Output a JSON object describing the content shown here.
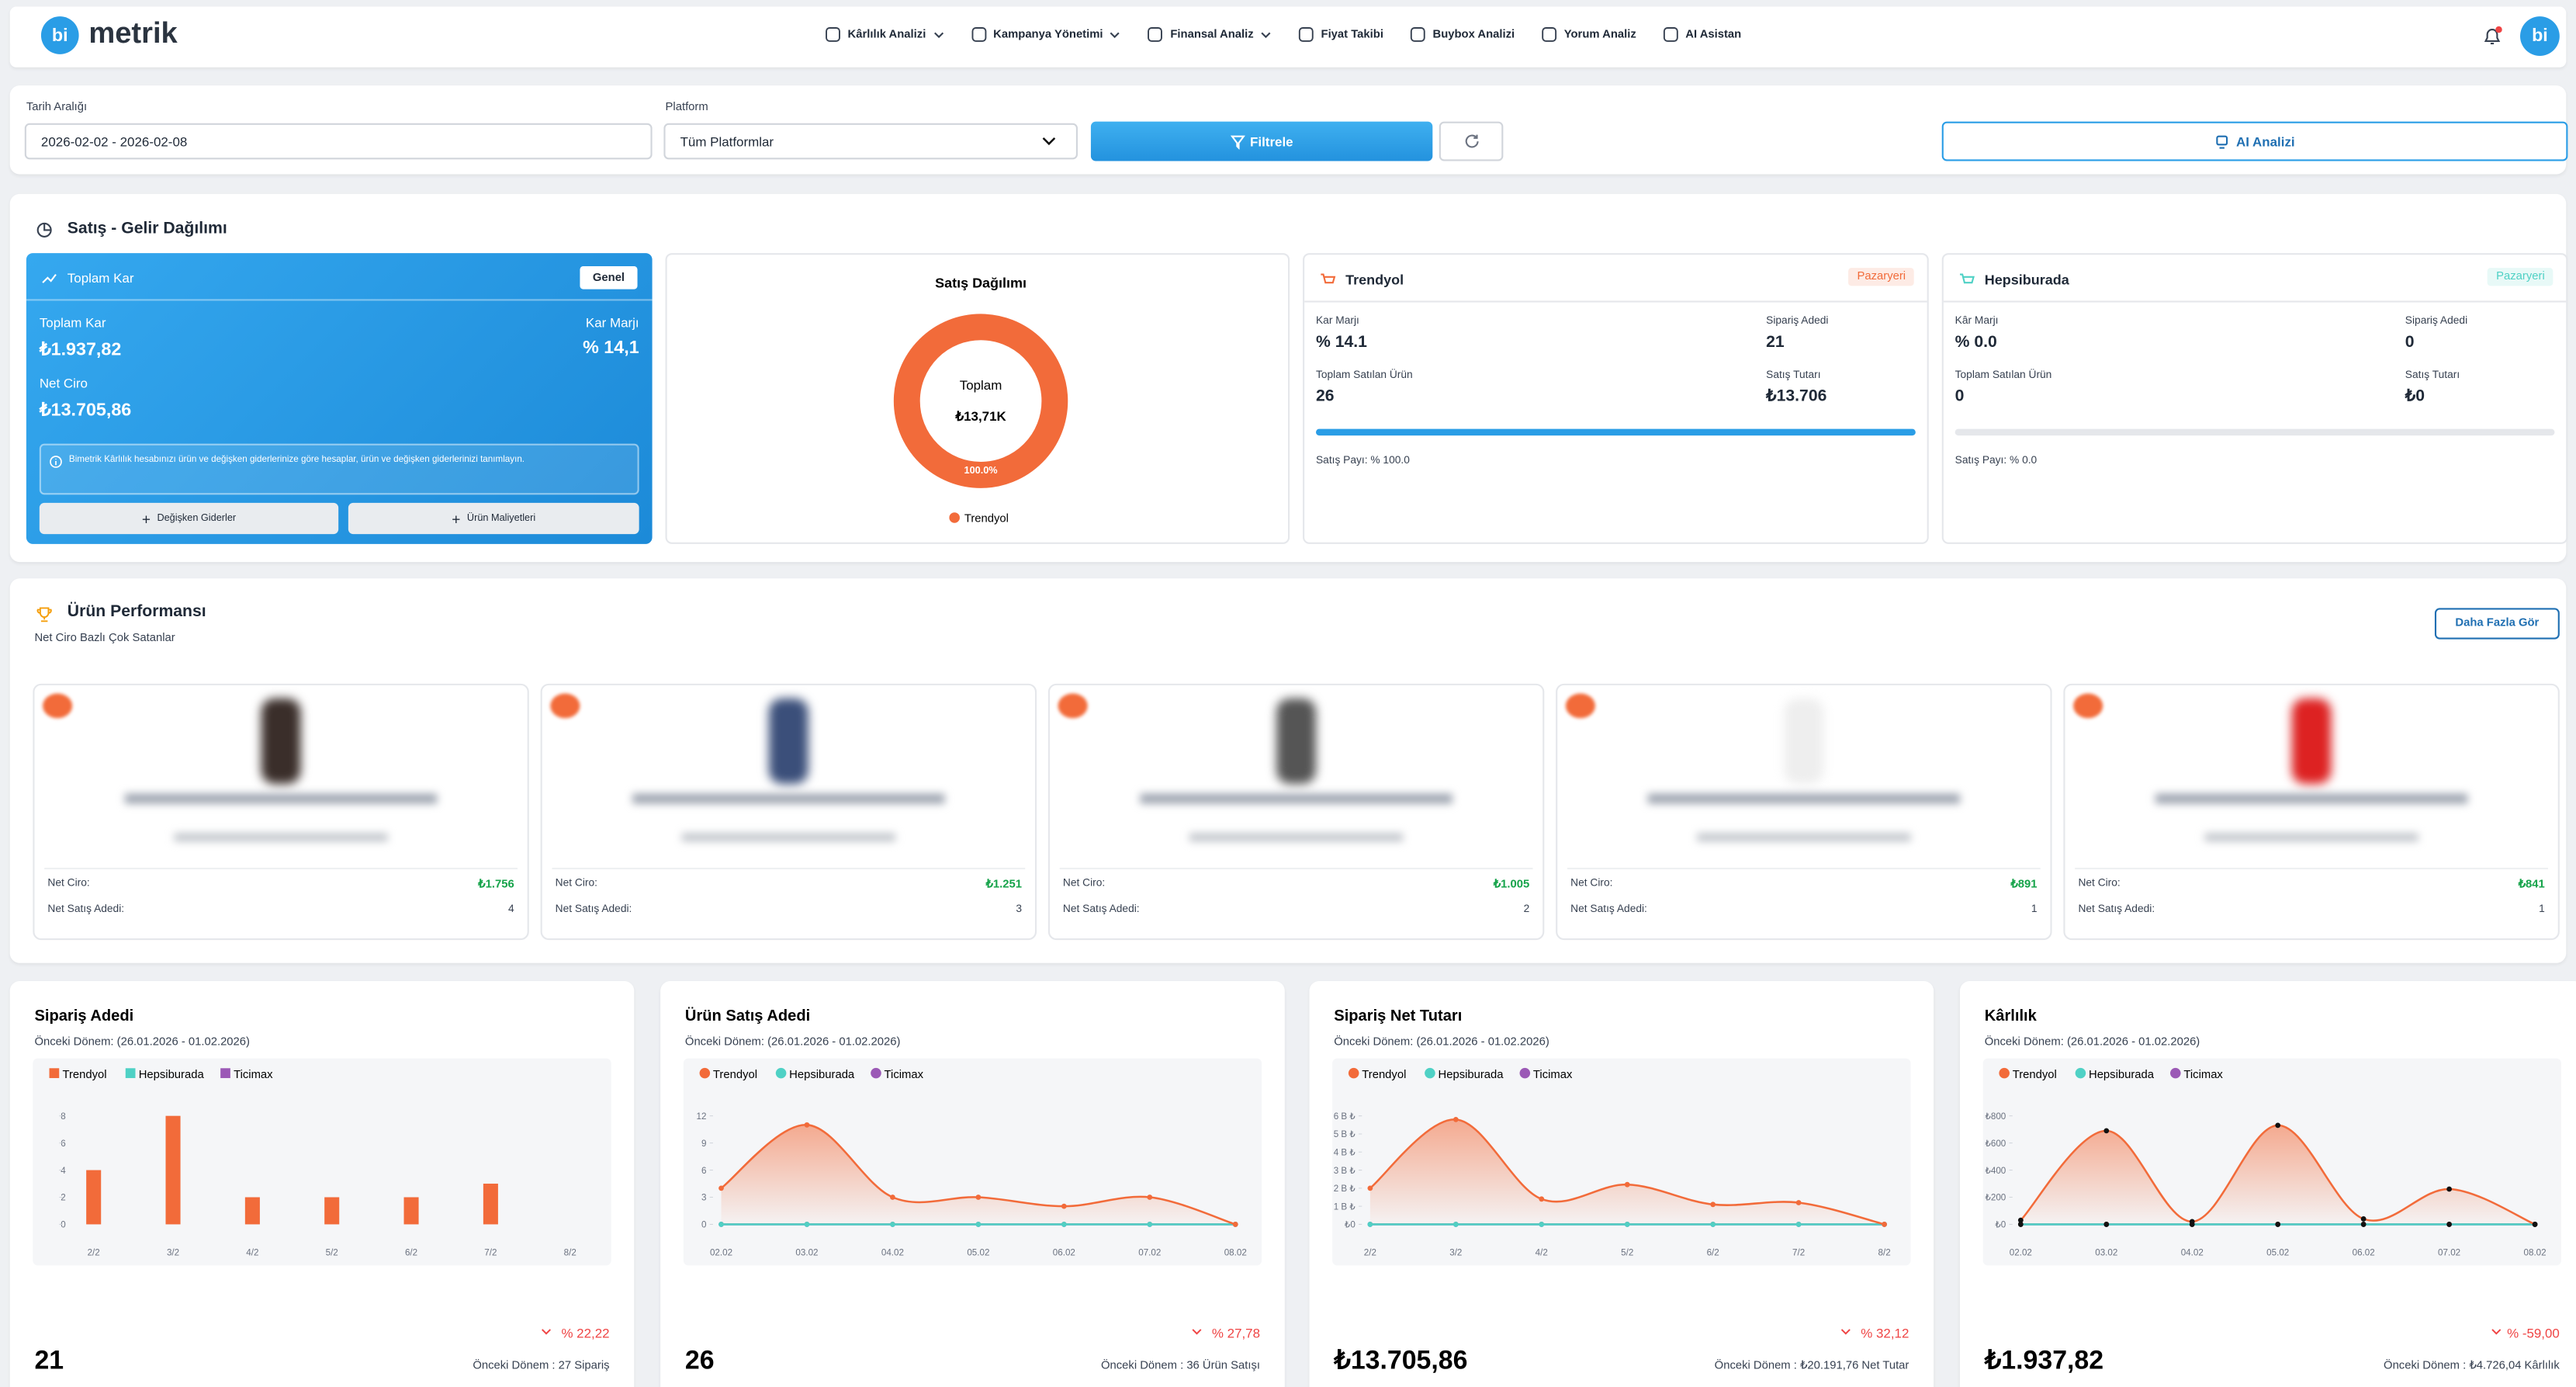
{
  "nav": {
    "logo": "bi",
    "brand": "metrik",
    "items": [
      "Kârlılık Analizi",
      "Kampanya Yönetimi",
      "Finansal Analiz",
      "Fiyat Takibi",
      "Buybox Analizi",
      "Yorum Analiz",
      "AI Asistan"
    ],
    "avatar": "bi"
  },
  "filters": {
    "date_label": "Tarih Aralığı",
    "date_value": "2026-02-02 - 2026-02-08",
    "platform_label": "Platform",
    "platform_value": "Tüm Platformlar",
    "filter_button": "Filtrele",
    "ai_button": "AI Analizi"
  },
  "sales": {
    "title": "Satış - Gelir Dağılımı",
    "profit": {
      "title": "Toplam Kar",
      "badge": "Genel",
      "total_label": "Toplam Kar",
      "total": "₺1.937,82",
      "margin_label": "Kar Marjı",
      "margin": "% 14,1",
      "revenue_label": "Net Ciro",
      "revenue": "₺13.705,86",
      "info": "Bimetrik Kârlılık hesabınızı ürün ve değişken giderlerinize göre hesaplar, ürün ve değişken giderlerinizi tanımlayın.",
      "buttons": [
        "Değişken Giderler",
        "Ürün Maliyetleri"
      ]
    },
    "distribution": {
      "type": "pie",
      "title": "Satış Dağılımı",
      "center_label": "Toplam",
      "center_value": "₺13,71K",
      "slices": [
        {
          "name": "Trendyol",
          "color": "#f26b3a",
          "value": 100,
          "value_label": "100.0%"
        }
      ]
    },
    "marketplaces": [
      {
        "name": "Trendyol",
        "badge": "Pazaryeri",
        "color": "#f26b3a",
        "bar_color": "#2a9de6",
        "fields": [
          {
            "label": "Kar Marjı",
            "value": "% 14.1"
          },
          {
            "label": "Sipariş Adedi",
            "value": 21
          },
          {
            "label": "Toplam Satılan Ürün",
            "value": 26
          },
          {
            "label": "Satış Tutarı",
            "value": "₺13.706"
          }
        ],
        "share": 100,
        "xlim": [
          0,
          100
        ],
        "share_label": "Satış Payı: % 100.0"
      },
      {
        "name": "Hepsiburada",
        "badge": "Pazaryeri",
        "color": "#4fd1c5",
        "bar_color": "#2a9de6",
        "fields": [
          {
            "label": "Kâr Marjı",
            "value": "% 0.0"
          },
          {
            "label": "Sipariş Adedi",
            "value": 0
          },
          {
            "label": "Toplam Satılan Ürün",
            "value": 0
          },
          {
            "label": "Satış Tutarı",
            "value": "₺0"
          }
        ],
        "share": 0,
        "xlim": [
          0,
          100
        ],
        "share_label": "Satış Payı: % 0.0"
      }
    ]
  },
  "products": {
    "title": "Ürün Performansı",
    "subtitle": "Net Ciro Bazlı Çok Satanlar",
    "more_button": "Daha Fazla Gör",
    "items": [
      {
        "net_ciro_label": "Net Ciro:",
        "net_ciro": "₺1.756",
        "count_label": "Net Satış Adedi:",
        "count": 4
      },
      {
        "net_ciro_label": "Net Ciro:",
        "net_ciro": "₺1.251",
        "count_label": "Net Satış Adedi:",
        "count": 3
      },
      {
        "net_ciro_label": "Net Ciro:",
        "net_ciro": "₺1.005",
        "count_label": "Net Satış Adedi:",
        "count": 2
      },
      {
        "net_ciro_label": "Net Ciro:",
        "net_ciro": "₺891",
        "count_label": "Net Satış Adedi:",
        "count": 1
      },
      {
        "net_ciro_label": "Net Ciro:",
        "net_ciro": "₺841",
        "count_label": "Net Satış Adedi:",
        "count": 1
      }
    ]
  },
  "charts": [
    {
      "type": "bar",
      "title": "Sipariş Adedi",
      "subtitle": "Önceki Dönem: (26.01.2026 - 01.02.2026)",
      "categories": [
        "2/2",
        "3/2",
        "4/2",
        "5/2",
        "6/2",
        "7/2",
        "8/2"
      ],
      "series": [
        {
          "name": "Trendyol",
          "color": "#f26b3a",
          "values": [
            4,
            8,
            2,
            2,
            2,
            3,
            0
          ]
        },
        {
          "name": "Hepsiburada",
          "color": "#4fd1c5",
          "values": [
            0,
            0,
            0,
            0,
            0,
            0,
            0
          ]
        },
        {
          "name": "Ticimax",
          "color": "#9b59b6",
          "values": [
            0,
            0,
            0,
            0,
            0,
            0,
            0
          ]
        }
      ],
      "ylim": [
        0,
        8
      ],
      "yticks": [
        0,
        2,
        4,
        6,
        8
      ],
      "total": "21",
      "change": "% 22,22",
      "previous": "Önceki Dönem : 27 Sipariş"
    },
    {
      "type": "line",
      "title": "Ürün Satış Adedi",
      "subtitle": "Önceki Dönem: (26.01.2026 - 01.02.2026)",
      "categories": [
        "02.02",
        "03.02",
        "04.02",
        "05.02",
        "06.02",
        "07.02",
        "08.02"
      ],
      "series": [
        {
          "name": "Trendyol",
          "color": "#f26b3a",
          "values": [
            4,
            11,
            3,
            3,
            2,
            3,
            0
          ]
        },
        {
          "name": "Hepsiburada",
          "color": "#4fd1c5",
          "values": [
            0,
            0,
            0,
            0,
            0,
            0,
            0
          ]
        },
        {
          "name": "Ticimax",
          "color": "#9b59b6",
          "values": [
            0,
            0,
            0,
            0,
            0,
            0,
            0
          ]
        }
      ],
      "ylim": [
        0,
        12
      ],
      "yticks": [
        0,
        3,
        6,
        9,
        12
      ],
      "total": "26",
      "change": "% 27,78",
      "previous": "Önceki Dönem : 36 Ürün Satışı"
    },
    {
      "type": "line",
      "title": "Sipariş Net Tutarı",
      "subtitle": "Önceki Dönem: (26.01.2026 - 01.02.2026)",
      "categories": [
        "2/2",
        "3/2",
        "4/2",
        "5/2",
        "6/2",
        "7/2",
        "8/2"
      ],
      "series": [
        {
          "name": "Trendyol",
          "color": "#f26b3a",
          "values": [
            2000,
            5800,
            1400,
            2200,
            1100,
            1200,
            0
          ]
        },
        {
          "name": "Hepsiburada",
          "color": "#4fd1c5",
          "values": [
            0,
            0,
            0,
            0,
            0,
            0,
            0
          ]
        },
        {
          "name": "Ticimax",
          "color": "#9b59b6",
          "values": [
            0,
            0,
            0,
            0,
            0,
            0,
            0
          ]
        }
      ],
      "ylim": [
        0,
        6000
      ],
      "yticks": [
        {
          "value": 0,
          "label": "₺0"
        },
        {
          "value": 1000,
          "label": "1 B ₺"
        },
        {
          "value": 2000,
          "label": "2 B ₺"
        },
        {
          "value": 3000,
          "label": "3 B ₺"
        },
        {
          "value": 4000,
          "label": "4 B ₺"
        },
        {
          "value": 5000,
          "label": "5 B ₺"
        },
        {
          "value": 6000,
          "label": "6 B ₺"
        }
      ],
      "total": "₺13.705,86",
      "change": "% 32,12",
      "previous": "Önceki Dönem : ₺20.191,76 Net Tutar"
    },
    {
      "type": "line",
      "title": "Kârlılık",
      "subtitle": "Önceki Dönem: (26.01.2026 - 01.02.2026)",
      "categories": [
        "02.02",
        "03.02",
        "04.02",
        "05.02",
        "06.02",
        "07.02",
        "08.02"
      ],
      "series": [
        {
          "name": "Trendyol",
          "color": "#f26b3a",
          "values": [
            30,
            690,
            20,
            730,
            40,
            260,
            0
          ]
        },
        {
          "name": "Hepsiburada",
          "color": "#4fd1c5",
          "values": [
            0,
            0,
            0,
            0,
            0,
            0,
            0
          ]
        },
        {
          "name": "Ticimax",
          "color": "#9b59b6",
          "values": [
            0,
            0,
            0,
            0,
            0,
            0,
            0
          ]
        }
      ],
      "marker_color": "#111111",
      "ylim": [
        0,
        800
      ],
      "yticks": [
        {
          "value": 0,
          "label": "₺0"
        },
        {
          "value": 200,
          "label": "₺200"
        },
        {
          "value": 400,
          "label": "₺400"
        },
        {
          "value": 600,
          "label": "₺600"
        },
        {
          "value": 800,
          "label": "₺800"
        }
      ],
      "total": "₺1.937,82",
      "change": "% -59,00",
      "previous": "Önceki Dönem : ₺4.726,04 Kârlılık"
    }
  ]
}
